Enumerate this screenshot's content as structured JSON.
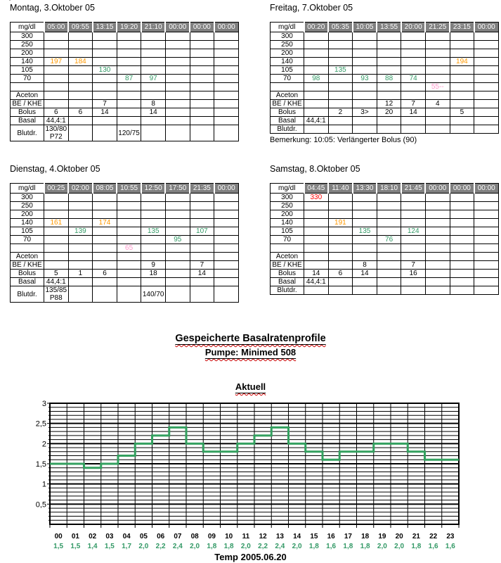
{
  "page": {
    "stray_mark": "'",
    "title": "Gespeicherte Basalratenprofile",
    "subtitle": "Pumpe: Minimed 508",
    "chart_title": "Aktuell",
    "footer": "Temp 2005.06.20"
  },
  "colors": {
    "header_bg": "#808080",
    "header_text": "#ffffff",
    "table_border": "#000000",
    "grid": "#000000",
    "value_colors": {
      "o": "#ff9900",
      "g": "#339966",
      "r": "#ff0000",
      "p": "#ff99cc"
    }
  },
  "tables": [
    {
      "title": "Montag, 3.Oktober 05",
      "corner": "mg/dl",
      "times": [
        "05:00",
        "09:55",
        "13:15",
        "19:20",
        "21:10",
        "00:00",
        "00:00",
        "00:00"
      ],
      "tall_blutdr": true,
      "remark": "",
      "rows": [
        {
          "label": "300",
          "cells": [
            "",
            "",
            "",
            "",
            "",
            "",
            "",
            ""
          ]
        },
        {
          "label": "250",
          "cells": [
            "",
            "",
            "",
            "",
            "",
            "",
            "",
            ""
          ]
        },
        {
          "label": "200",
          "cells": [
            "",
            "",
            "",
            "",
            "",
            "",
            "",
            ""
          ]
        },
        {
          "label": "140",
          "cells": [
            {
              "t": "197",
              "c": "o"
            },
            {
              "t": "184",
              "c": "o"
            },
            "",
            "",
            "",
            "",
            "",
            ""
          ]
        },
        {
          "label": "105",
          "cells": [
            "",
            "",
            {
              "t": "130",
              "c": "g"
            },
            "",
            "",
            "",
            "",
            ""
          ]
        },
        {
          "label": "70",
          "cells": [
            "",
            "",
            "",
            {
              "t": "87",
              "c": "g"
            },
            {
              "t": "97",
              "c": "g"
            },
            "",
            "",
            ""
          ]
        },
        {
          "label": "",
          "cells": [
            "",
            "",
            "",
            "",
            "",
            "",
            "",
            ""
          ]
        },
        {
          "label": "Aceton",
          "cells": [
            "",
            "",
            "",
            "",
            "",
            "",
            "",
            ""
          ]
        },
        {
          "label": "BE / KHE",
          "cells": [
            "",
            "",
            "7",
            "",
            "8",
            "",
            "",
            ""
          ]
        },
        {
          "label": "Bolus",
          "cells": [
            "6",
            "6",
            "14",
            "",
            "14",
            "",
            "",
            ""
          ]
        },
        {
          "label": "Basal",
          "cells": [
            "44,4:1",
            "",
            "",
            "",
            "",
            "",
            "",
            ""
          ]
        },
        {
          "label": "Blutdr.",
          "cells": [
            "130/80\nP72",
            "",
            "",
            "120/75",
            "",
            "",
            "",
            ""
          ]
        }
      ]
    },
    {
      "title": "Freitag, 7.Oktober 05",
      "corner": "mg/dl",
      "times": [
        "00:20",
        "05:35",
        "10:05",
        "13:55",
        "20:00",
        "21:25",
        "23:15",
        "00:00"
      ],
      "tall_blutdr": false,
      "remark": "Bemerkung: 10:05: Verlängerter Bolus (90)",
      "rows": [
        {
          "label": "300",
          "cells": [
            "",
            "",
            "",
            "",
            "",
            "",
            "",
            ""
          ]
        },
        {
          "label": "250",
          "cells": [
            "",
            "",
            "",
            "",
            "",
            "",
            "",
            ""
          ]
        },
        {
          "label": "200",
          "cells": [
            "",
            "",
            "",
            "",
            "",
            "",
            "",
            ""
          ]
        },
        {
          "label": "140",
          "cells": [
            "",
            "",
            "",
            "",
            "",
            "",
            {
              "t": "194",
              "c": "o"
            },
            ""
          ]
        },
        {
          "label": "105",
          "cells": [
            "",
            {
              "t": "135",
              "c": "g"
            },
            "",
            "",
            "",
            "",
            "",
            ""
          ]
        },
        {
          "label": "70",
          "cells": [
            {
              "t": "98",
              "c": "g"
            },
            "",
            {
              "t": "93",
              "c": "g"
            },
            {
              "t": "88",
              "c": "g"
            },
            {
              "t": "74",
              "c": "g"
            },
            "",
            "",
            ""
          ]
        },
        {
          "label": "",
          "cells": [
            "",
            "",
            "",
            "",
            "",
            {
              "t": "55--",
              "c": "p"
            },
            "",
            ""
          ]
        },
        {
          "label": "Aceton",
          "cells": [
            "",
            "",
            "",
            "",
            "",
            "",
            "",
            ""
          ]
        },
        {
          "label": "BE / KHE",
          "cells": [
            "",
            "",
            "",
            "12",
            "7",
            "4",
            "",
            ""
          ]
        },
        {
          "label": "Bolus",
          "cells": [
            "",
            "2",
            "3>",
            "20",
            "14",
            "",
            "5",
            ""
          ]
        },
        {
          "label": "Basal",
          "cells": [
            "44,4:1",
            "",
            "",
            "",
            "",
            "",
            "",
            ""
          ]
        },
        {
          "label": "Blutdr.",
          "cells": [
            "",
            "",
            "",
            "",
            "",
            "",
            "",
            ""
          ]
        }
      ]
    },
    {
      "title": "Dienstag, 4.Oktober 05",
      "corner": "mg/dl",
      "times": [
        "00:25",
        "02:00",
        "08:05",
        "10:55",
        "12:50",
        "17:50",
        "21:35",
        "00:00"
      ],
      "tall_blutdr": true,
      "remark": "",
      "rows": [
        {
          "label": "300",
          "cells": [
            "",
            "",
            "",
            "",
            "",
            "",
            "",
            ""
          ]
        },
        {
          "label": "250",
          "cells": [
            "",
            "",
            "",
            "",
            "",
            "",
            "",
            ""
          ]
        },
        {
          "label": "200",
          "cells": [
            "",
            "",
            "",
            "",
            "",
            "",
            "",
            ""
          ]
        },
        {
          "label": "140",
          "cells": [
            {
              "t": "161",
              "c": "o"
            },
            "",
            {
              "t": "174",
              "c": "o"
            },
            "",
            "",
            "",
            "",
            ""
          ]
        },
        {
          "label": "105",
          "cells": [
            "",
            {
              "t": "139",
              "c": "g"
            },
            "",
            "",
            {
              "t": "135",
              "c": "g"
            },
            "",
            {
              "t": "107",
              "c": "g"
            },
            ""
          ]
        },
        {
          "label": "70",
          "cells": [
            "",
            "",
            "",
            "",
            "",
            {
              "t": "95",
              "c": "g"
            },
            "",
            ""
          ]
        },
        {
          "label": "",
          "cells": [
            "",
            "",
            "",
            {
              "t": "65",
              "c": "p"
            },
            "",
            "",
            "",
            ""
          ]
        },
        {
          "label": "Aceton",
          "cells": [
            "",
            "",
            "",
            "",
            "",
            "",
            "",
            ""
          ]
        },
        {
          "label": "BE / KHE",
          "cells": [
            "",
            "",
            "",
            "",
            "9",
            "",
            "7",
            ""
          ]
        },
        {
          "label": "Bolus",
          "cells": [
            "5",
            "1",
            "6",
            "",
            "18",
            "",
            "14",
            ""
          ]
        },
        {
          "label": "Basal",
          "cells": [
            "44,4:1",
            "",
            "",
            "",
            "",
            "",
            "",
            ""
          ]
        },
        {
          "label": "Blutdr.",
          "cells": [
            "135/85\nP88",
            "",
            "",
            "",
            "140/70",
            "",
            "",
            ""
          ]
        }
      ]
    },
    {
      "title": "Samstag, 8.Oktober 05",
      "corner": "mg/dl",
      "times": [
        "04:45",
        "11:40",
        "13:30",
        "18:10",
        "21:45",
        "00:00",
        "00:00",
        "00:00"
      ],
      "tall_blutdr": false,
      "remark": "",
      "rows": [
        {
          "label": "300",
          "cells": [
            {
              "t": "330",
              "c": "r"
            },
            "",
            "",
            "",
            "",
            "",
            "",
            ""
          ]
        },
        {
          "label": "250",
          "cells": [
            "",
            "",
            "",
            "",
            "",
            "",
            "",
            ""
          ]
        },
        {
          "label": "200",
          "cells": [
            "",
            "",
            "",
            "",
            "",
            "",
            "",
            ""
          ]
        },
        {
          "label": "140",
          "cells": [
            "",
            {
              "t": "191",
              "c": "o"
            },
            "",
            "",
            "",
            "",
            "",
            ""
          ]
        },
        {
          "label": "105",
          "cells": [
            "",
            "",
            {
              "t": "135",
              "c": "g"
            },
            "",
            {
              "t": "124",
              "c": "g"
            },
            "",
            "",
            ""
          ]
        },
        {
          "label": "70",
          "cells": [
            "",
            "",
            "",
            {
              "t": "76",
              "c": "g"
            },
            "",
            "",
            "",
            ""
          ]
        },
        {
          "label": "",
          "cells": [
            "",
            "",
            "",
            "",
            "",
            "",
            "",
            ""
          ]
        },
        {
          "label": "Aceton",
          "cells": [
            "",
            "",
            "",
            "",
            "",
            "",
            "",
            ""
          ]
        },
        {
          "label": "BE / KHE",
          "cells": [
            "",
            "",
            "8",
            "",
            "7",
            "",
            "",
            ""
          ]
        },
        {
          "label": "Bolus",
          "cells": [
            "14",
            "6",
            "14",
            "",
            "16",
            "",
            "",
            ""
          ]
        },
        {
          "label": "Basal",
          "cells": [
            "44,4:1",
            "",
            "",
            "",
            "",
            "",
            "",
            ""
          ]
        },
        {
          "label": "Blutdr.",
          "cells": [
            "",
            "",
            "",
            "",
            "",
            "",
            "",
            ""
          ]
        }
      ]
    }
  ],
  "chart_data": {
    "type": "line",
    "subtype": "step",
    "title": "Aktuell",
    "x": [
      "00",
      "01",
      "02",
      "03",
      "04",
      "05",
      "06",
      "07",
      "08",
      "09",
      "10",
      "11",
      "12",
      "13",
      "14",
      "15",
      "16",
      "17",
      "18",
      "19",
      "20",
      "21",
      "22",
      "23"
    ],
    "values": [
      1.5,
      1.5,
      1.4,
      1.5,
      1.7,
      2.0,
      2.2,
      2.4,
      2.0,
      1.8,
      1.8,
      2.0,
      2.2,
      2.4,
      2.0,
      1.8,
      1.6,
      1.8,
      1.8,
      2.0,
      2.0,
      1.8,
      1.6,
      1.6
    ],
    "value_labels": [
      "1,5",
      "1,5",
      "1,4",
      "1,5",
      "1,7",
      "2,0",
      "2,2",
      "2,4",
      "2,0",
      "1,8",
      "1,8",
      "2,0",
      "2,2",
      "2,4",
      "2,0",
      "1,8",
      "1,6",
      "1,8",
      "1,8",
      "2,0",
      "2,0",
      "1,8",
      "1,6",
      "1,6"
    ],
    "xlabel": "",
    "ylabel": "",
    "ylim": [
      0,
      3
    ],
    "ytick_values": [
      0.5,
      1,
      1.5,
      2,
      2.5,
      3
    ],
    "ytick_labels": [
      "0,5",
      "1",
      "1,5",
      "2",
      "2,5",
      "3"
    ],
    "y_major_step": 0.5,
    "y_minor_step": 0.1,
    "grid": true,
    "legend": false,
    "line_color": "#33a05f",
    "value_label_color": "#339966"
  }
}
